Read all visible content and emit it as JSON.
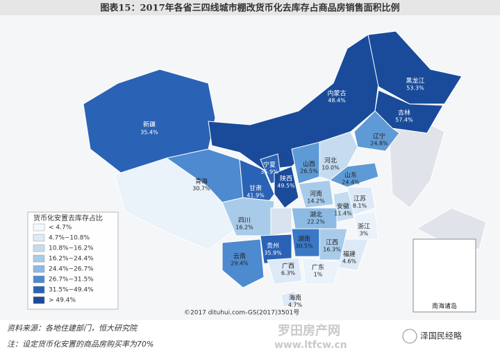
{
  "header": {
    "title": "图表15：2017年各省三四线城市棚改货币化去库存占商品房销售面积比例"
  },
  "provinces": [
    {
      "name": "新疆",
      "value": "35.4%"
    },
    {
      "name": "青海",
      "value": "30.7%"
    },
    {
      "name": "甘肃",
      "value": "41.9%"
    },
    {
      "name": "宁夏",
      "value": "35.9%"
    },
    {
      "name": "内蒙古",
      "value": "48.4%"
    },
    {
      "name": "黑龙江",
      "value": "53.3%"
    },
    {
      "name": "吉林",
      "value": "57.4%"
    },
    {
      "name": "辽宁",
      "value": "24.8%"
    },
    {
      "name": "山西",
      "value": "26.5%"
    },
    {
      "name": "河北",
      "value": "10.0%"
    },
    {
      "name": "陕西",
      "value": "49.5%"
    },
    {
      "name": "山东",
      "value": "24.4%"
    },
    {
      "name": "河南",
      "value": "14.2%"
    },
    {
      "name": "江苏",
      "value": "8.1%"
    },
    {
      "name": "安徽",
      "value": "11.4%"
    },
    {
      "name": "湖北",
      "value": "22.2%"
    },
    {
      "name": "四川",
      "value": "16.2%"
    },
    {
      "name": "浙江",
      "value": "3%"
    },
    {
      "name": "湖南",
      "value": "30.5%"
    },
    {
      "name": "贵州",
      "value": "35.9%"
    },
    {
      "name": "江西",
      "value": "16.3%"
    },
    {
      "name": "福建",
      "value": "4.6%"
    },
    {
      "name": "云南",
      "value": "29.4%"
    },
    {
      "name": "广西",
      "value": "6.3%"
    },
    {
      "name": "广东",
      "value": "1%"
    },
    {
      "name": "海南",
      "value": "4.7%"
    }
  ],
  "inset_label": "南海诸岛",
  "legend": {
    "title": "货币化安置去库存占比",
    "items": [
      {
        "label": "< 4.7%",
        "color": "#f4f8fc"
      },
      {
        "label": "4.7%~10.8%",
        "color": "#dde9f6"
      },
      {
        "label": "10.8%~16.2%",
        "color": "#c5dcf0"
      },
      {
        "label": "16.2%~24.4%",
        "color": "#a9cbea"
      },
      {
        "label": "24.4%~26.7%",
        "color": "#8cbae3"
      },
      {
        "label": "26.7%~31.5%",
        "color": "#4d8ad0"
      },
      {
        "label": "31.5%~49.4%",
        "color": "#2a62b5"
      },
      {
        "label": "> 49.4%",
        "color": "#1a4b9a"
      }
    ]
  },
  "copyright": "©2017 dituhui.com-GS(2017)3501号",
  "footer": {
    "source": "资料来源：各地住建部门，恒大研究院",
    "note": "注：设定货币化安置的商品房购买率为70%"
  },
  "watermark": {
    "site_name": "罗田房产网",
    "url": "www.ltfcw.cn",
    "account": "泽国民经略"
  }
}
